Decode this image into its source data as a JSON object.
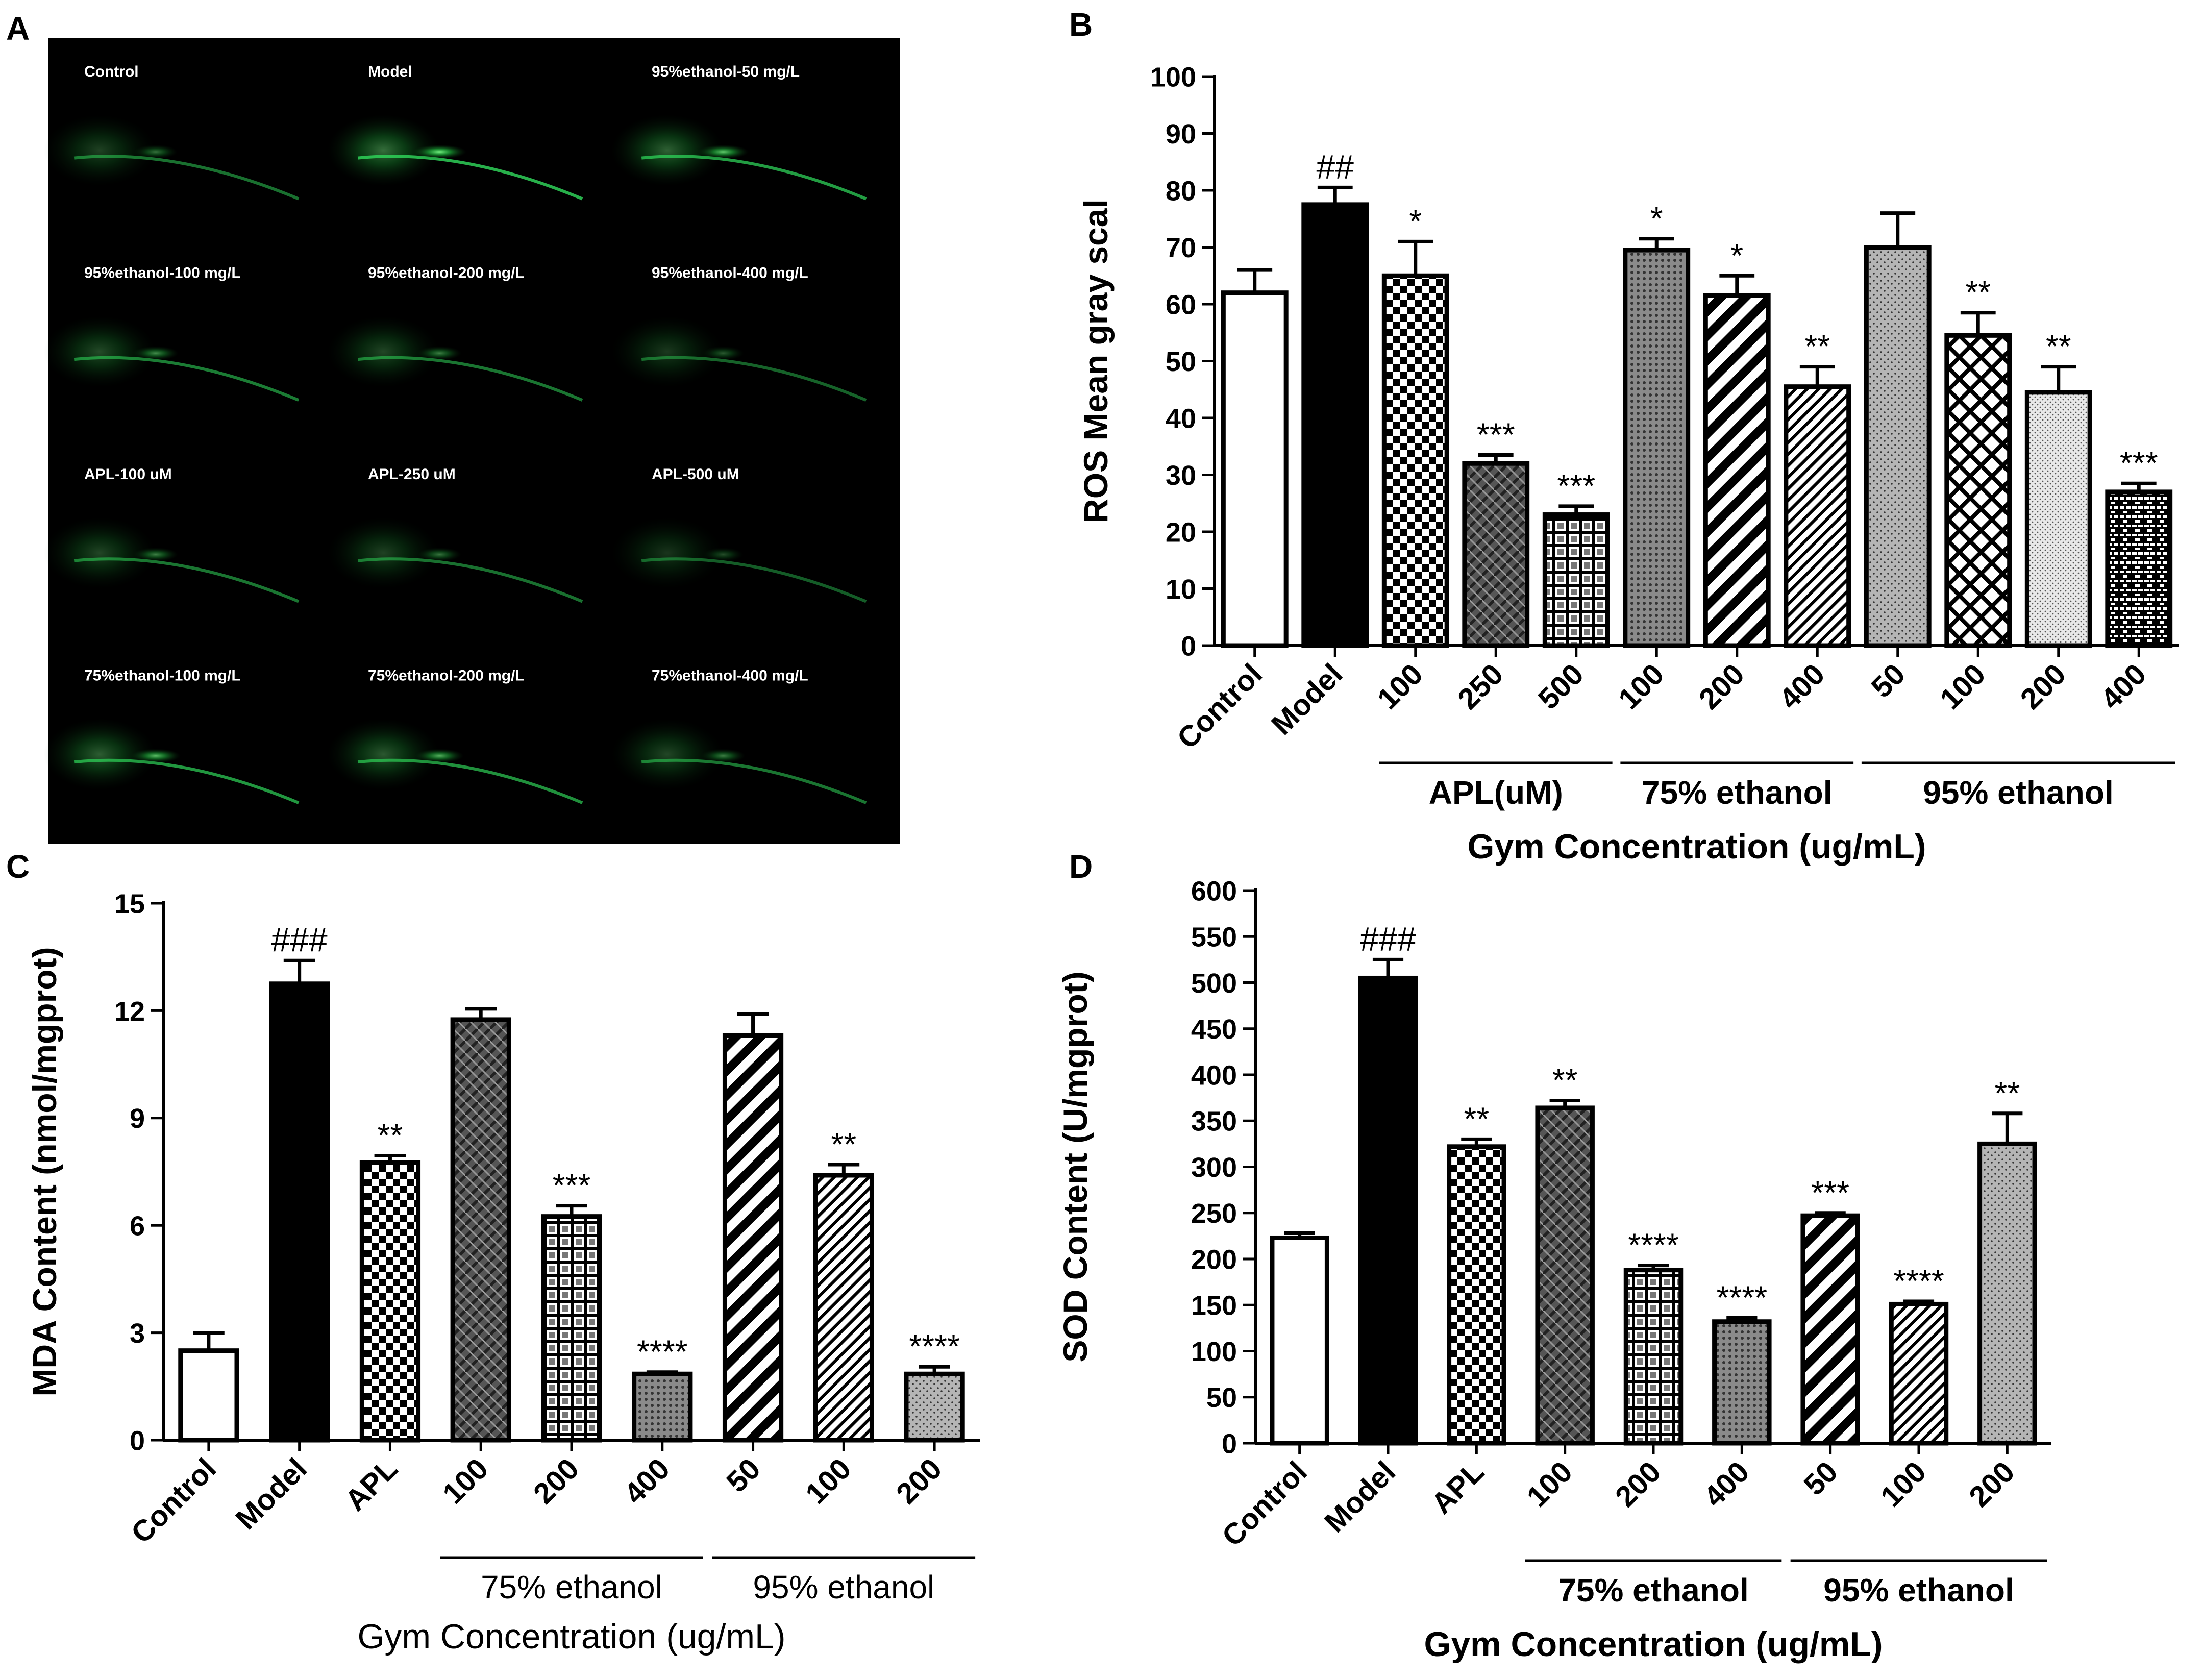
{
  "panel_labels": [
    "A",
    "B",
    "C",
    "D"
  ],
  "panel_a": {
    "background": "#000000",
    "label_color": "#ffffff",
    "glow_color": "#2fd65a",
    "images": [
      {
        "label": "Control",
        "intensity": 0.45
      },
      {
        "label": "Model",
        "intensity": 0.95
      },
      {
        "label": "95%ethanol-50 mg/L",
        "intensity": 0.8
      },
      {
        "label": "95%ethanol-100 mg/L",
        "intensity": 0.55
      },
      {
        "label": "95%ethanol-200 mg/L",
        "intensity": 0.5
      },
      {
        "label": "95%ethanol-400 mg/L",
        "intensity": 0.35
      },
      {
        "label": "APL-100 uM",
        "intensity": 0.5
      },
      {
        "label": "APL-250 uM",
        "intensity": 0.45
      },
      {
        "label": "APL-500 uM",
        "intensity": 0.3
      },
      {
        "label": "75%ethanol-100 mg/L",
        "intensity": 0.75
      },
      {
        "label": "75%ethanol-200 mg/L",
        "intensity": 0.7
      },
      {
        "label": "75%ethanol-400 mg/L",
        "intensity": 0.5
      }
    ]
  },
  "chart_data": [
    {
      "panel": "B",
      "type": "bar",
      "ylabel": "ROS Mean gray scal",
      "xlabel": "Gym Concentration (ug/mL)",
      "ylim": [
        0,
        100
      ],
      "yticks": [
        0,
        10,
        20,
        30,
        40,
        50,
        60,
        70,
        80,
        90,
        100
      ],
      "categories": [
        "Control",
        "Model",
        "100",
        "250",
        "500",
        "100",
        "200",
        "400",
        "50",
        "100",
        "200",
        "400"
      ],
      "values": [
        62,
        77.5,
        65,
        32,
        23,
        69.5,
        61.5,
        45.5,
        70,
        54.5,
        44.5,
        27
      ],
      "errors": [
        4,
        3,
        6,
        1.5,
        1.5,
        2,
        3.5,
        3.5,
        6,
        4,
        4.5,
        1.5
      ],
      "annotations": [
        "",
        "##",
        "*",
        "***",
        "***",
        "*",
        "*",
        "**",
        "",
        "**",
        "**",
        "***"
      ],
      "patterns": [
        "white",
        "black",
        "checker",
        "weave",
        "grid",
        "dots",
        "diag",
        "diag-thin",
        "stipple",
        "crosshatch",
        "fine-dots",
        "brick"
      ],
      "groups": [
        {
          "label": "APL(uM)",
          "from": 2,
          "to": 4
        },
        {
          "label": "75% ethanol",
          "from": 5,
          "to": 7
        },
        {
          "label": "95% ethanol",
          "from": 8,
          "to": 11
        }
      ]
    },
    {
      "panel": "C",
      "type": "bar",
      "ylabel": "MDA Content (nmol/mgprot)",
      "xlabel": "Gym Concentration (ug/mL)",
      "ylim": [
        0,
        15
      ],
      "yticks": [
        0,
        3,
        6,
        9,
        12,
        15
      ],
      "categories": [
        "Control",
        "Model",
        "APL",
        "100",
        "200",
        "400",
        "50",
        "100",
        "200"
      ],
      "values": [
        2.5,
        12.75,
        7.75,
        11.75,
        6.25,
        1.85,
        11.3,
        7.4,
        1.85
      ],
      "errors": [
        0.5,
        0.65,
        0.2,
        0.3,
        0.3,
        0.05,
        0.6,
        0.3,
        0.2
      ],
      "annotations": [
        "",
        "###",
        "**",
        "",
        "***",
        "****",
        "",
        "**",
        "****"
      ],
      "patterns": [
        "white",
        "black",
        "checker",
        "weave",
        "grid",
        "dots",
        "diag",
        "diag-thin",
        "stipple"
      ],
      "groups": [
        {
          "label": "75% ethanol",
          "from": 3,
          "to": 5
        },
        {
          "label": "95% ethanol",
          "from": 6,
          "to": 8
        }
      ]
    },
    {
      "panel": "D",
      "type": "bar",
      "ylabel": "SOD Content (U/mgprot)",
      "xlabel": "Gym Concentration (ug/mL)",
      "ylim": [
        0,
        600
      ],
      "yticks": [
        0,
        50,
        100,
        150,
        200,
        250,
        300,
        350,
        400,
        450,
        500,
        550,
        600
      ],
      "categories": [
        "Control",
        "Model",
        "APL",
        "100",
        "200",
        "400",
        "50",
        "100",
        "200"
      ],
      "values": [
        223,
        505,
        322,
        364,
        188,
        132,
        247,
        151,
        325
      ],
      "errors": [
        5,
        20,
        8,
        8,
        5,
        4,
        3,
        3,
        33
      ],
      "annotations": [
        "",
        "###",
        "**",
        "**",
        "****",
        "****",
        "***",
        "****",
        "**"
      ],
      "patterns": [
        "white",
        "black",
        "checker",
        "weave",
        "grid",
        "dots",
        "diag",
        "diag-thin",
        "stipple"
      ],
      "groups": [
        {
          "label": "75% ethanol",
          "from": 3,
          "to": 5
        },
        {
          "label": "95% ethanol",
          "from": 6,
          "to": 8
        }
      ]
    }
  ]
}
